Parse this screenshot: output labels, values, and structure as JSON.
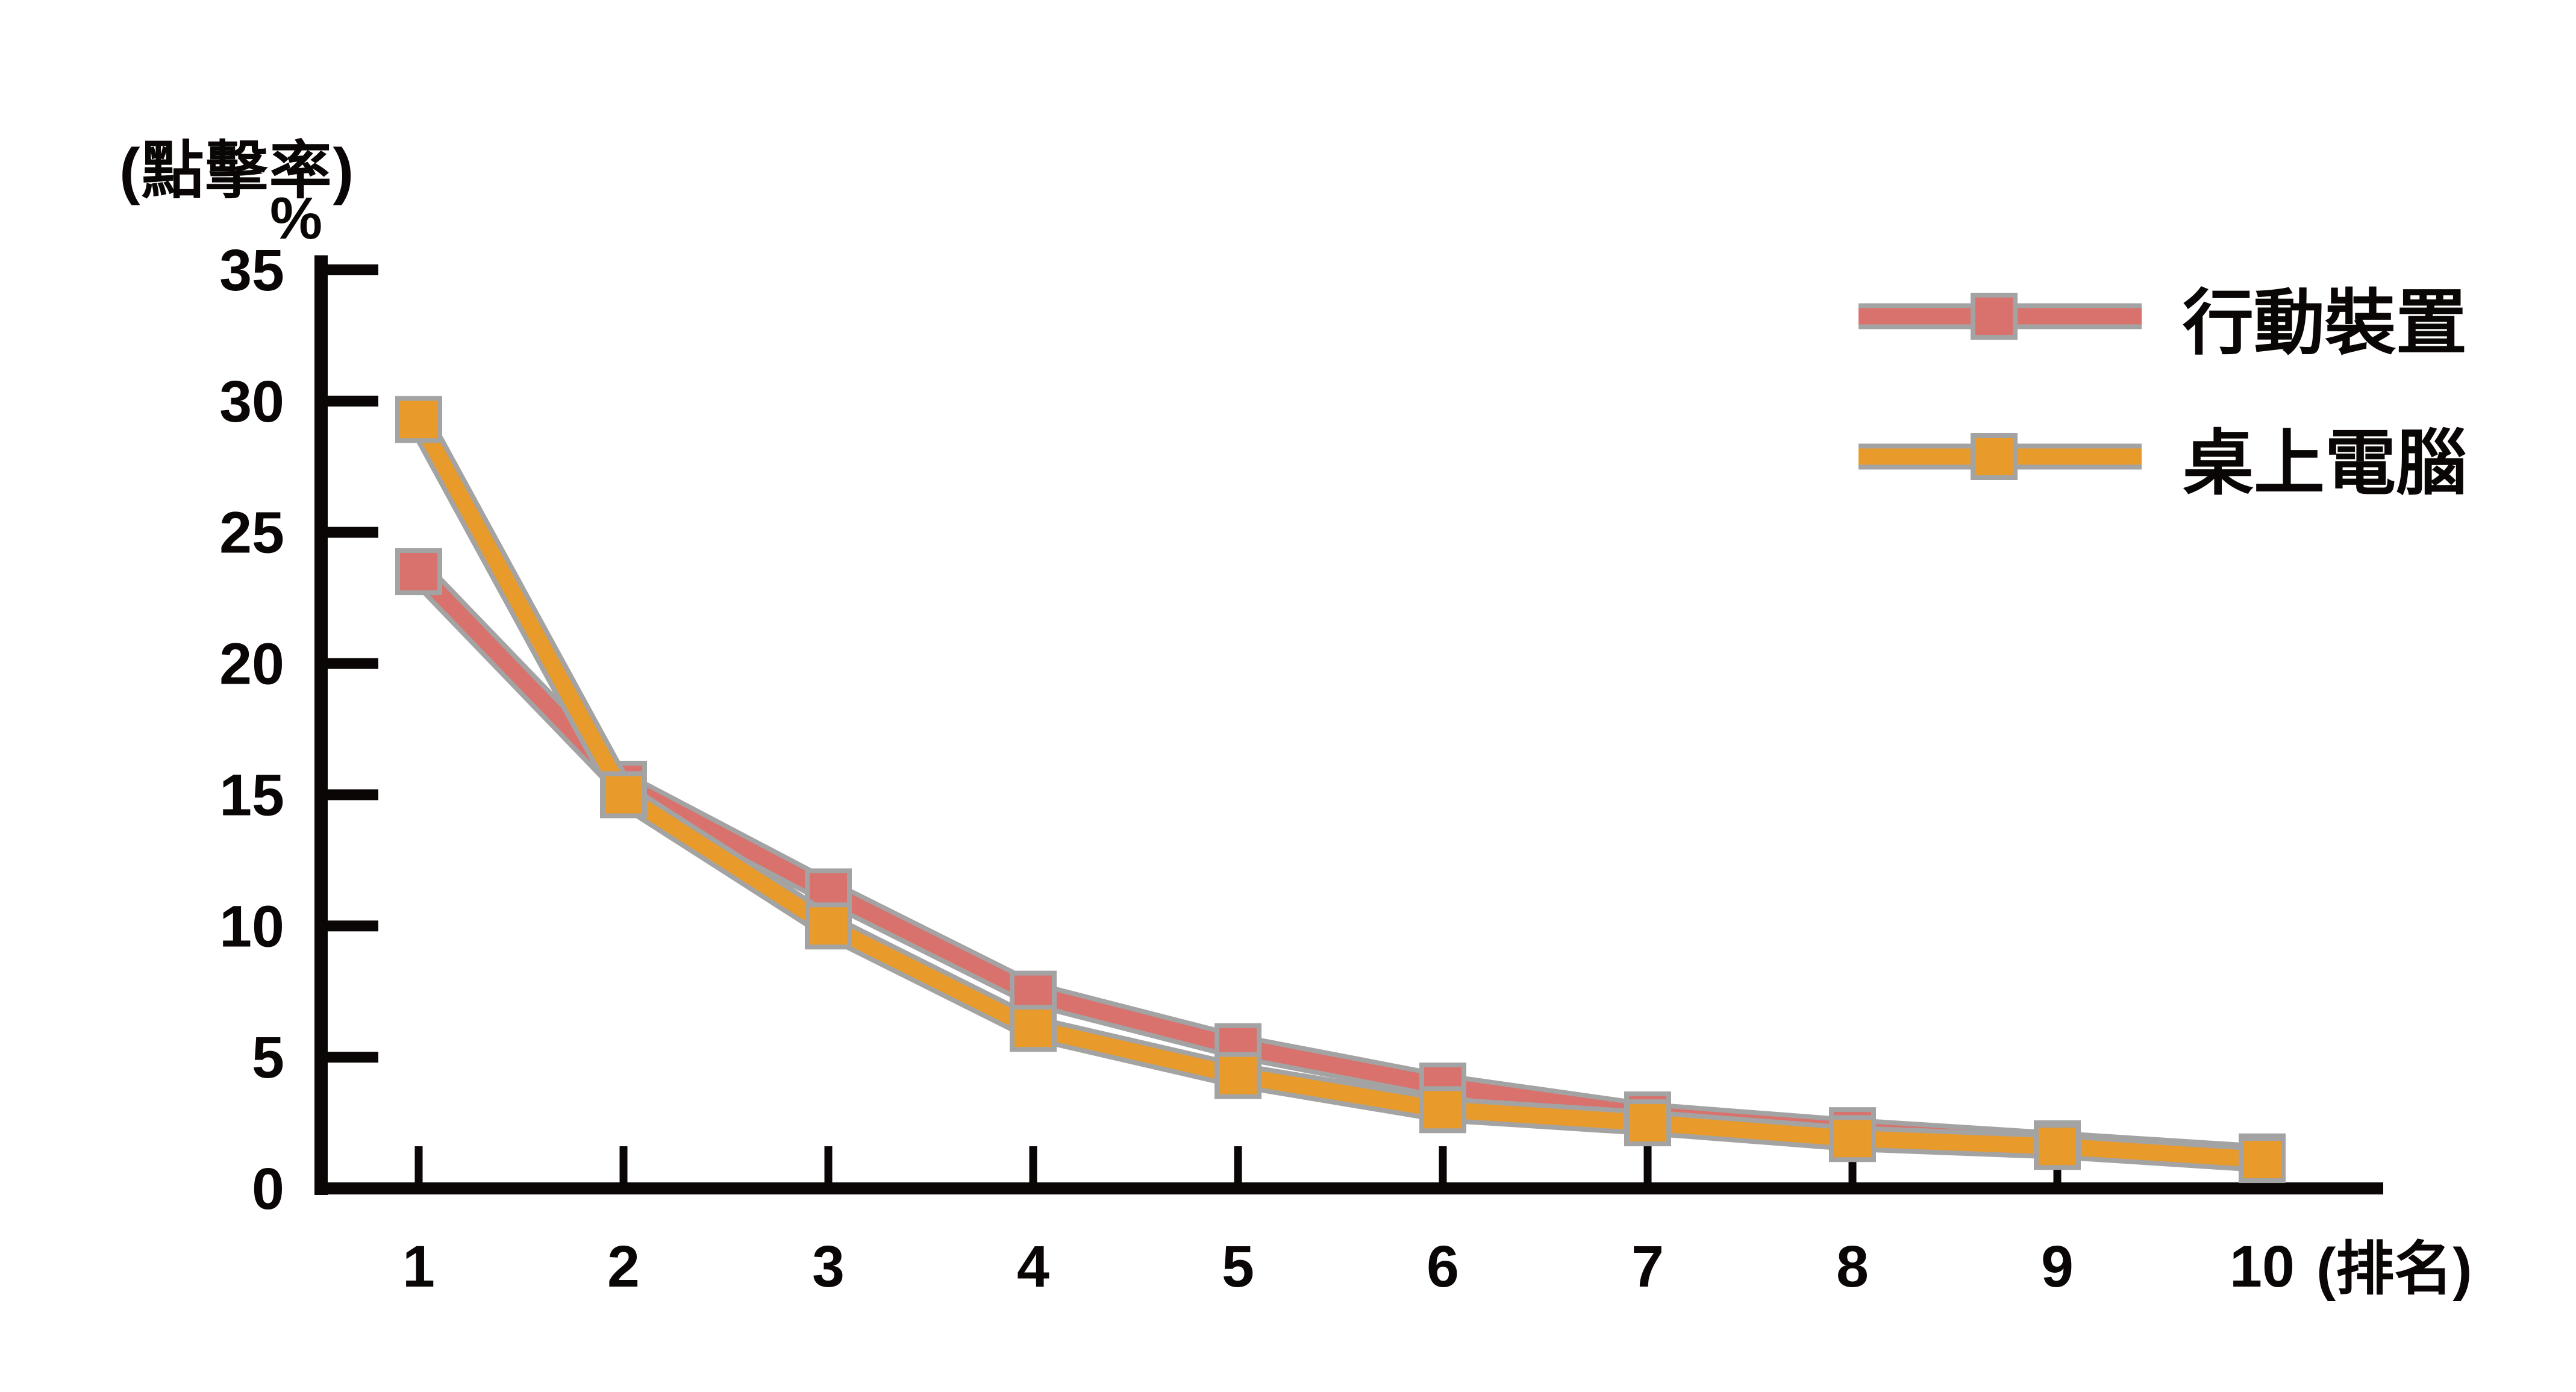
{
  "page": {
    "background": "#ffffff"
  },
  "y_axis": {
    "title": "(點擊率)",
    "unit": "%"
  },
  "x_axis": {
    "unit": "(排名)"
  },
  "legend": {
    "position": "top-right",
    "items": [
      {
        "label": "行動裝置",
        "color": "#d9716c"
      },
      {
        "label": "桌上電腦",
        "color": "#e89b2b"
      }
    ]
  },
  "chart_data": {
    "type": "line",
    "title": "",
    "categories": [
      "1",
      "2",
      "3",
      "4",
      "5",
      "6",
      "7",
      "8",
      "9",
      "10"
    ],
    "series": [
      {
        "name": "行動裝置",
        "color": "#d9716c",
        "values": [
          23.5,
          15.4,
          11.3,
          7.4,
          5.4,
          3.9,
          2.8,
          2.2,
          1.7,
          1.2
        ]
      },
      {
        "name": "桌上電腦",
        "color": "#e89b2b",
        "values": [
          29.3,
          15.0,
          10.0,
          6.1,
          4.3,
          3.0,
          2.5,
          1.9,
          1.6,
          1.1
        ]
      }
    ],
    "xlabel": "(排名)",
    "ylabel": "(點擊率) %",
    "ylim": [
      0,
      35
    ],
    "y_ticks": [
      0,
      5,
      10,
      15,
      20,
      25,
      30,
      35
    ],
    "grid": false,
    "marker": "square",
    "legend_position": "top-right",
    "outline_color": "#a3a3a3",
    "axis_color": "#0a0606"
  }
}
